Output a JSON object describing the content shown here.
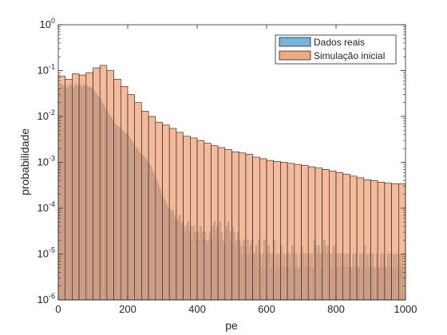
{
  "chart_data": {
    "type": "bar",
    "xlabel": "pe",
    "ylabel": "probabilidade",
    "xlim": [
      0,
      1000
    ],
    "ylim": [
      1e-06,
      1
    ],
    "yscale": "log",
    "grid": false,
    "legend_position": "top-right",
    "xticks": [
      0,
      200,
      400,
      600,
      800,
      1000
    ],
    "xtick_labels": [
      "0",
      "200",
      "400",
      "600",
      "800",
      "1000"
    ],
    "yticks": [
      1e-06,
      1e-05,
      0.0001,
      0.001,
      0.01,
      0.1,
      1
    ],
    "ytick_labels": [
      {
        "base": "10",
        "exp": "-6"
      },
      {
        "base": "10",
        "exp": "-5"
      },
      {
        "base": "10",
        "exp": "-4"
      },
      {
        "base": "10",
        "exp": "-3"
      },
      {
        "base": "10",
        "exp": "-2"
      },
      {
        "base": "10",
        "exp": "-1"
      },
      {
        "base": "10",
        "exp": "0"
      }
    ],
    "series": [
      {
        "name": "Dados reais",
        "color": "#78b4dc",
        "bin_width": 4,
        "x_start": 0,
        "values": [
          0.04,
          0.045,
          0.05,
          0.042,
          0.048,
          0.04,
          0.046,
          0.043,
          0.05,
          0.045,
          0.04,
          0.044,
          0.05,
          0.047,
          0.042,
          0.05,
          0.045,
          0.04,
          0.048,
          0.043,
          0.046,
          0.04,
          0.045,
          0.042,
          0.04,
          0.037,
          0.033,
          0.03,
          0.027,
          0.026,
          0.024,
          0.02,
          0.018,
          0.016,
          0.014,
          0.012,
          0.011,
          0.01,
          0.009,
          0.008,
          0.007,
          0.0065,
          0.006,
          0.0058,
          0.0055,
          0.005,
          0.0048,
          0.0045,
          0.0042,
          0.004,
          0.0037,
          0.0033,
          0.003,
          0.0027,
          0.0025,
          0.0022,
          0.002,
          0.0018,
          0.0016,
          0.0015,
          0.0014,
          0.0013,
          0.0012,
          0.0011,
          0.001,
          0.0009,
          0.0008,
          0.0007,
          0.0006,
          0.0005,
          0.00042,
          0.00036,
          0.0003,
          0.00025,
          0.0002,
          0.00017,
          0.00015,
          0.00013,
          0.00011,
          0.0001,
          9e-05,
          8e-05,
          9e-05,
          7e-05,
          6e-05,
          5e-05,
          6e-05,
          7e-05,
          4e-05,
          5e-05,
          4e-05,
          3e-05,
          4e-05,
          5e-05,
          3e-05,
          4e-05,
          2e-05,
          4e-05,
          3e-05,
          2e-05,
          3e-05,
          2e-05,
          4e-05,
          3e-05,
          2e-05,
          3e-05,
          2e-05,
          1.5e-05,
          2e-05,
          3e-05,
          2e-05,
          4e-05,
          5e-05,
          3e-05,
          4e-05,
          2e-05,
          5e-05,
          3e-05,
          2e-05,
          1.5e-05,
          3e-05,
          4e-05,
          5e-05,
          3e-05,
          2e-05,
          4e-05,
          3e-05,
          1.5e-05,
          2e-05,
          3e-05,
          2e-05,
          1.5e-05,
          1e-05,
          2e-05,
          1.5e-05,
          1e-05,
          2e-05,
          1e-05,
          1.5e-05,
          2e-05,
          1e-05,
          1e-05,
          1.5e-05,
          1e-05,
          2e-05,
          1e-05,
          5e-06,
          1e-05,
          2e-05,
          5e-06,
          1e-05,
          1.5e-05,
          1e-05,
          5e-06,
          1e-05,
          2e-05,
          5e-06,
          1e-05,
          5e-06,
          1e-05,
          1.5e-05,
          5e-06,
          1e-05,
          5e-06,
          1e-05,
          5e-06,
          1e-05,
          5e-06,
          1.5e-05,
          1e-05,
          5e-06,
          1e-05,
          5e-06,
          5e-06,
          1e-05,
          1.5e-05,
          1e-05,
          5e-06,
          1e-05,
          5e-06,
          1e-05,
          5e-06,
          1e-05,
          5e-06,
          2e-05,
          1.5e-05,
          1e-05,
          1.5e-05,
          1e-05,
          5e-06,
          1e-05,
          2e-05,
          1.5e-05,
          1e-05,
          1.5e-05,
          1e-05,
          5e-06,
          1e-05,
          1.5e-05,
          1e-05,
          5e-06,
          1e-05,
          5e-06,
          1e-05,
          5e-06,
          1e-05,
          5e-06,
          1e-05,
          5e-06,
          1e-05,
          5e-06,
          5e-06,
          1e-05,
          5e-06,
          1e-05,
          5e-06,
          5e-06,
          1e-05,
          5e-06,
          1e-05,
          1.5e-05,
          5e-06,
          1e-05,
          5e-06,
          1e-05,
          5e-06,
          1e-05,
          5e-06,
          5e-06,
          1e-05,
          5e-06,
          5e-06,
          1e-05,
          5e-06,
          1e-05,
          5e-06,
          5e-06,
          1e-05,
          5e-06,
          1e-05,
          5e-06,
          1e-05,
          5e-06,
          1e-05,
          5e-06,
          1e-05,
          5e-06,
          1e-05,
          5e-06
        ]
      },
      {
        "name": "Simulação inicial",
        "color": "#f0a880",
        "bin_width": 20,
        "x_start": 0,
        "values": [
          0.075,
          0.065,
          0.085,
          0.08,
          0.09,
          0.115,
          0.13,
          0.1,
          0.065,
          0.045,
          0.03,
          0.02,
          0.013,
          0.01,
          0.0075,
          0.0065,
          0.0055,
          0.0045,
          0.0037,
          0.0034,
          0.003,
          0.0026,
          0.0023,
          0.0021,
          0.0019,
          0.0017,
          0.0016,
          0.0015,
          0.0013,
          0.0012,
          0.0011,
          0.00105,
          0.001,
          0.00095,
          0.0009,
          0.00085,
          0.0008,
          0.00075,
          0.0007,
          0.00065,
          0.0006,
          0.00055,
          0.0005,
          0.00046,
          0.00042,
          0.0004,
          0.00037,
          0.00035,
          0.00034,
          0.00034
        ]
      }
    ]
  }
}
